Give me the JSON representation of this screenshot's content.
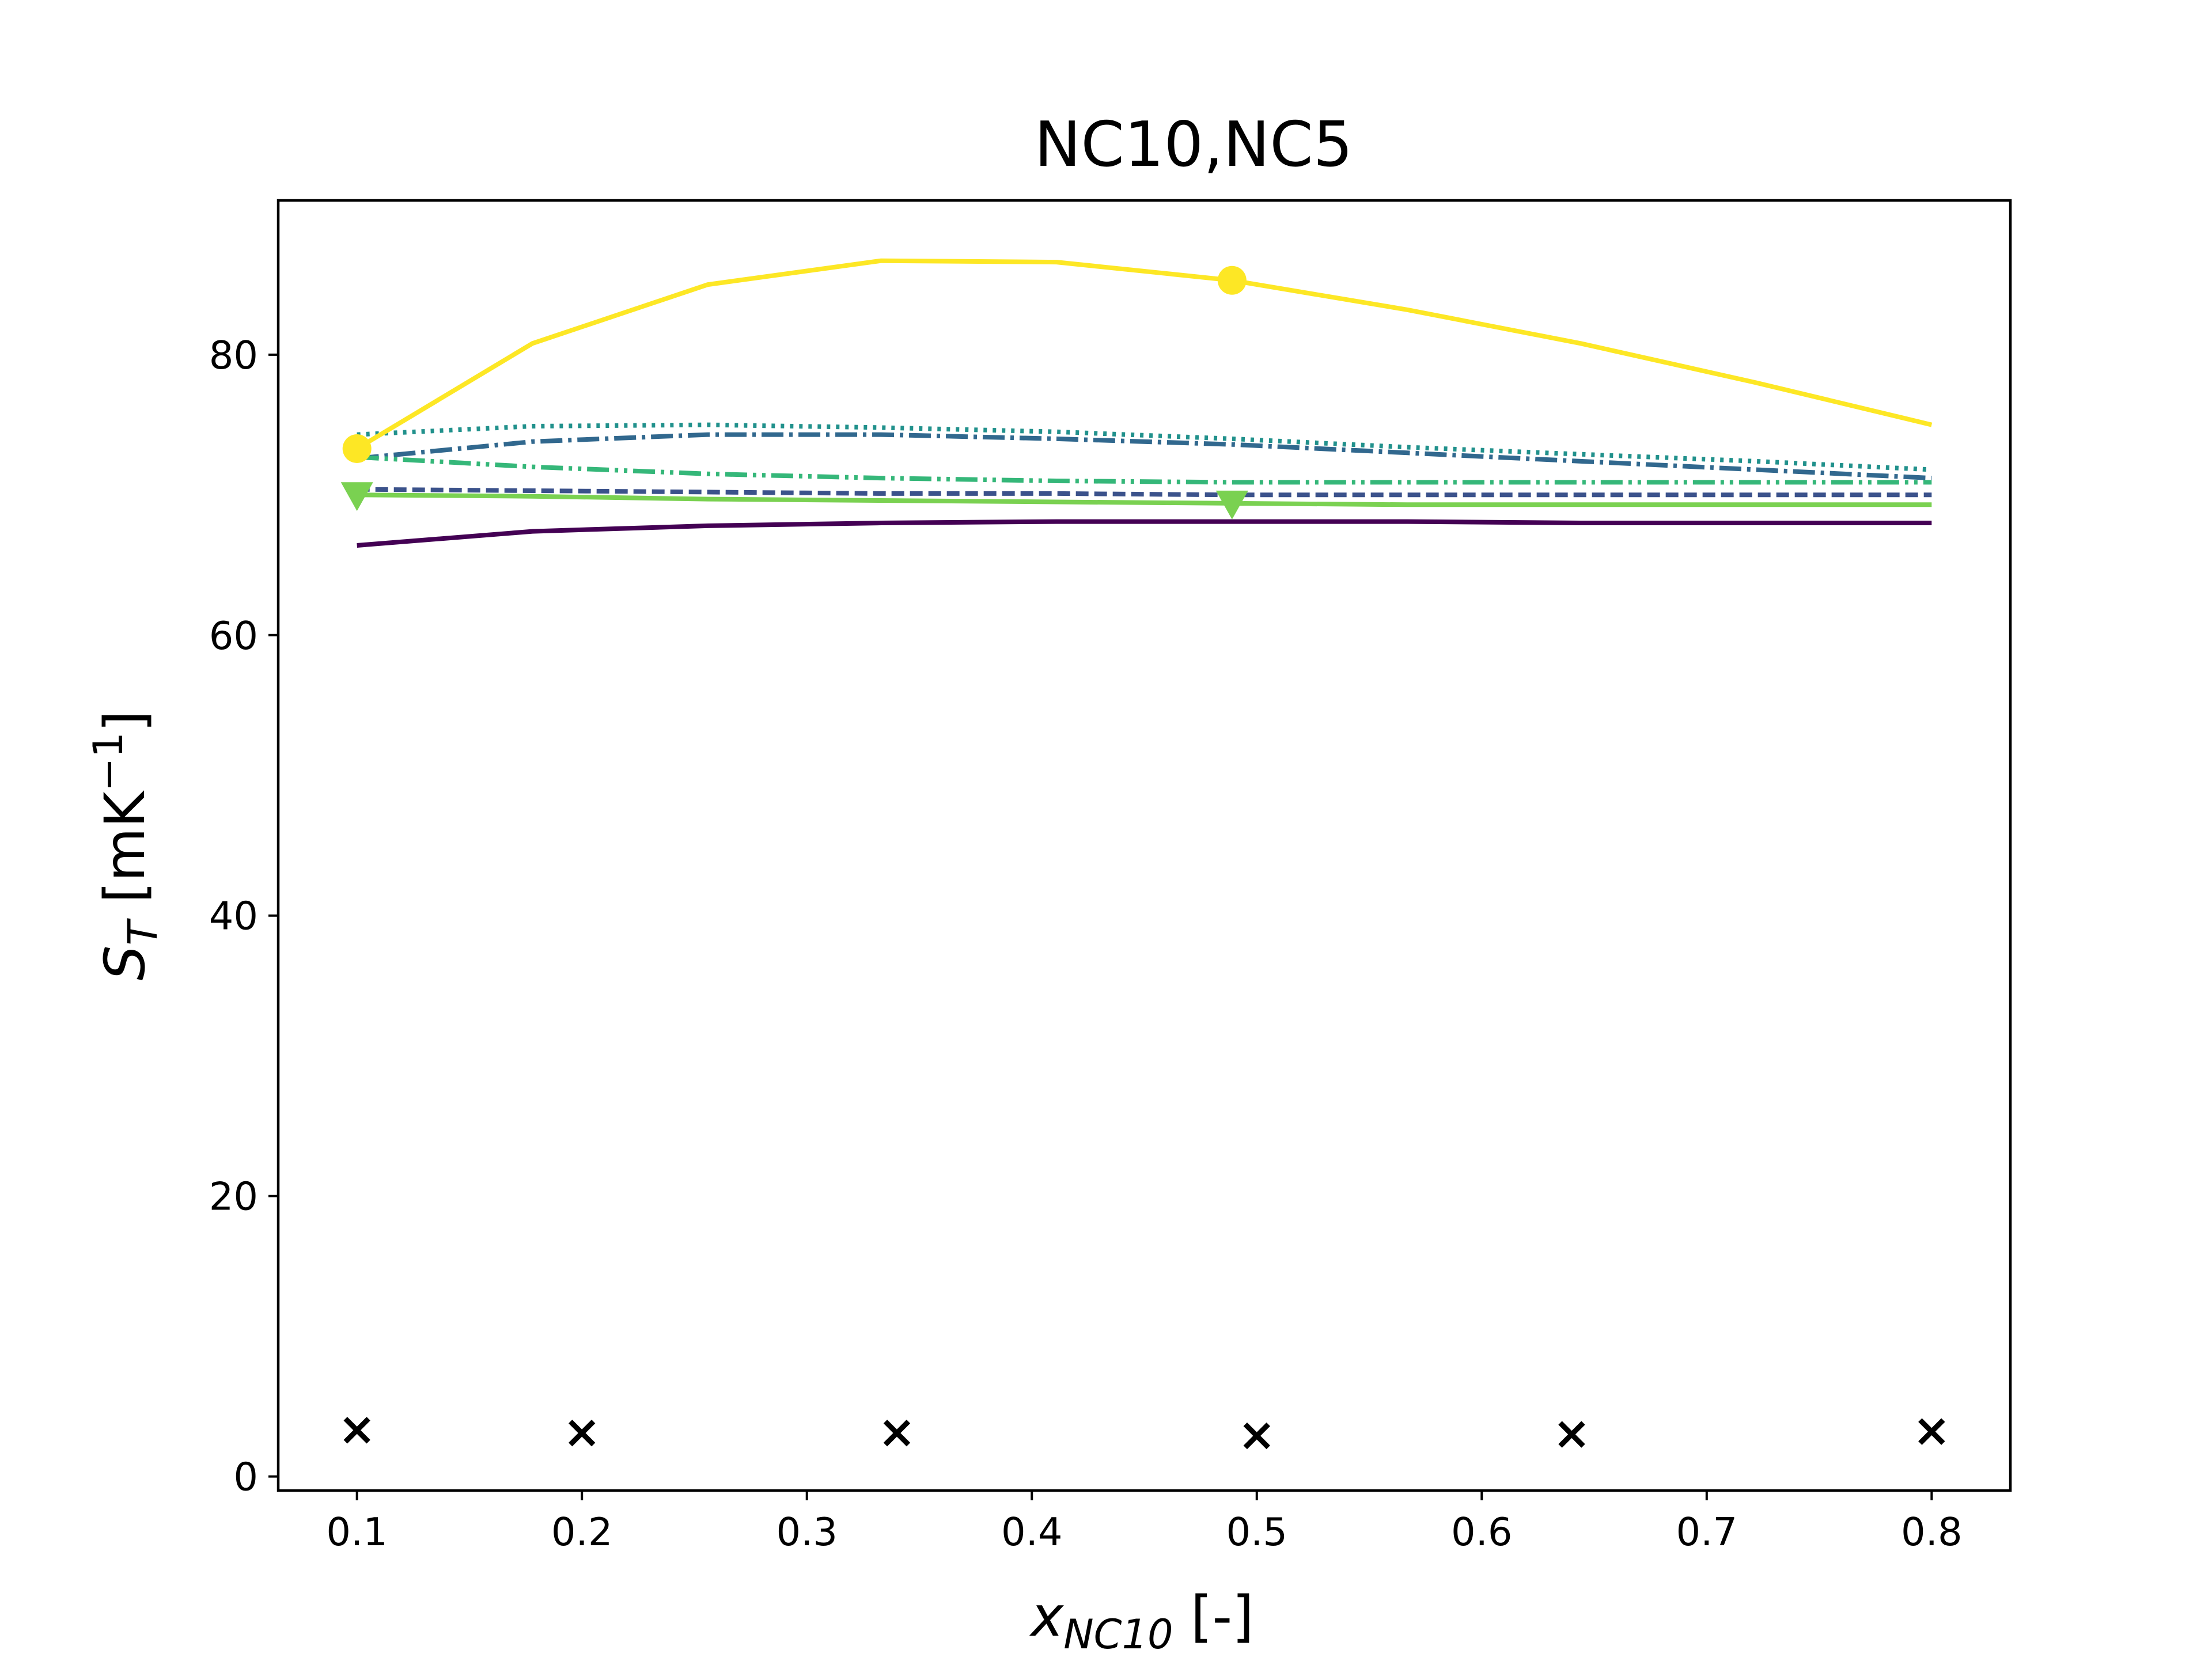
{
  "chart_data": {
    "type": "line",
    "title": "NC10,NC5",
    "xlabel_base": "x",
    "xlabel_sub": "NC10",
    "xlabel_tail": " [-]",
    "ylabel_base": "S",
    "ylabel_sub": "T",
    "ylabel_unit": " [mK",
    "ylabel_exp": "−1",
    "ylabel_close": "]",
    "xlim": [
      0.065,
      0.835
    ],
    "ylim": [
      -1,
      91
    ],
    "xticks": [
      0.1,
      0.2,
      0.3,
      0.4,
      0.5,
      0.6,
      0.7,
      0.8
    ],
    "xtick_labels": [
      "0.1",
      "0.2",
      "0.3",
      "0.4",
      "0.5",
      "0.6",
      "0.7",
      "0.8"
    ],
    "yticks": [
      0,
      20,
      40,
      60,
      80
    ],
    "ytick_labels": [
      "0",
      "20",
      "40",
      "60",
      "80"
    ],
    "grid": false,
    "series": [
      {
        "color": "#440154",
        "dash": "solid",
        "x": [
          0.1,
          0.178,
          0.256,
          0.333,
          0.411,
          0.489,
          0.567,
          0.644,
          0.722,
          0.8
        ],
        "y": [
          66.4,
          67.4,
          67.8,
          68.0,
          68.1,
          68.1,
          68.1,
          68.0,
          68.0,
          68.0
        ],
        "marker": null,
        "marker_x": [],
        "marker_y": []
      },
      {
        "color": "#3b528b",
        "dash": "dashed",
        "x": [
          0.1,
          0.178,
          0.256,
          0.333,
          0.411,
          0.489,
          0.567,
          0.644,
          0.722,
          0.8
        ],
        "y": [
          70.4,
          70.3,
          70.2,
          70.1,
          70.1,
          70.0,
          70.0,
          70.0,
          70.0,
          70.0
        ],
        "marker": null,
        "marker_x": [],
        "marker_y": []
      },
      {
        "color": "#21918c",
        "dash": "dotted",
        "x": [
          0.1,
          0.178,
          0.256,
          0.333,
          0.411,
          0.489,
          0.567,
          0.644,
          0.722,
          0.8
        ],
        "y": [
          74.3,
          74.9,
          75.0,
          74.8,
          74.5,
          74.0,
          73.4,
          72.9,
          72.4,
          71.8
        ],
        "marker": null,
        "marker_x": [],
        "marker_y": []
      },
      {
        "color": "#31688e",
        "dash": "dashdot",
        "x": [
          0.1,
          0.178,
          0.256,
          0.333,
          0.411,
          0.489,
          0.567,
          0.644,
          0.722,
          0.8
        ],
        "y": [
          72.6,
          73.8,
          74.3,
          74.3,
          74.0,
          73.6,
          73.0,
          72.4,
          71.8,
          71.2
        ],
        "marker": null,
        "marker_x": [],
        "marker_y": []
      },
      {
        "color": "#35b779",
        "dash": "dashdotdot",
        "x": [
          0.1,
          0.178,
          0.256,
          0.333,
          0.411,
          0.489,
          0.567,
          0.644,
          0.722,
          0.8
        ],
        "y": [
          72.7,
          72.0,
          71.5,
          71.2,
          71.0,
          70.9,
          70.9,
          70.9,
          70.9,
          70.9
        ],
        "marker": null,
        "marker_x": [],
        "marker_y": []
      },
      {
        "color": "#7ad151",
        "dash": "solid",
        "x": [
          0.1,
          0.178,
          0.256,
          0.333,
          0.411,
          0.489,
          0.567,
          0.644,
          0.722,
          0.8
        ],
        "y": [
          70.0,
          69.9,
          69.7,
          69.6,
          69.5,
          69.4,
          69.3,
          69.3,
          69.3,
          69.3
        ],
        "marker": "triangle",
        "marker_x": [
          0.1,
          0.489
        ],
        "marker_y": [
          70.0,
          69.4
        ]
      },
      {
        "color": "#fde725",
        "dash": "solid",
        "x": [
          0.1,
          0.178,
          0.256,
          0.333,
          0.411,
          0.489,
          0.567,
          0.644,
          0.722,
          0.8
        ],
        "y": [
          73.3,
          80.8,
          85.0,
          86.7,
          86.6,
          85.3,
          83.2,
          80.8,
          78.0,
          75.0
        ],
        "marker": "circle",
        "marker_x": [
          0.1,
          0.489
        ],
        "marker_y": [
          73.3,
          85.3
        ]
      },
      {
        "color": "#000000",
        "dash": "none",
        "x": [
          0.1,
          0.2,
          0.34,
          0.5,
          0.64,
          0.8
        ],
        "y": [
          3.3,
          3.1,
          3.1,
          2.9,
          3.0,
          3.2
        ],
        "marker": "x",
        "marker_x": [
          0.1,
          0.2,
          0.34,
          0.5,
          0.64,
          0.8
        ],
        "marker_y": [
          3.3,
          3.1,
          3.1,
          2.9,
          3.0,
          3.2
        ]
      }
    ]
  }
}
